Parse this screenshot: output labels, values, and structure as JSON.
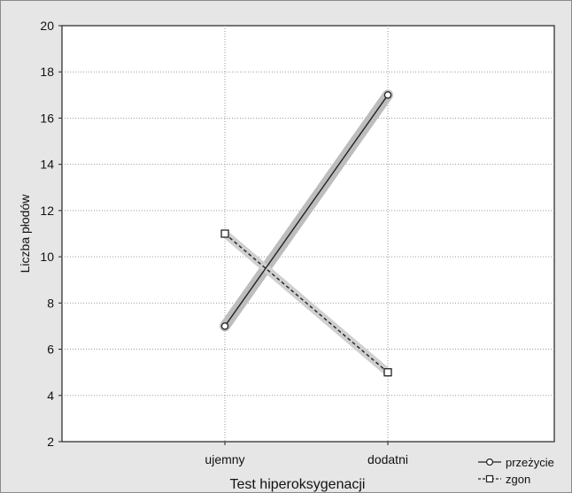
{
  "chart_data": {
    "type": "line",
    "title": "",
    "xlabel": "Test hiperoksygenacji",
    "ylabel": "Liczba płodów",
    "categories": [
      "ujemny",
      "dodatni"
    ],
    "ylim": [
      2,
      20
    ],
    "yticks": [
      2,
      4,
      6,
      8,
      10,
      12,
      14,
      16,
      18,
      20
    ],
    "grid": true,
    "legend_position": "bottom-right",
    "series": [
      {
        "name": "przeżycie",
        "values": [
          7,
          17
        ],
        "marker": "circle",
        "line_style": "solid",
        "color": "#222222",
        "band_color": "#bdbdbd"
      },
      {
        "name": "zgon",
        "values": [
          11,
          5
        ],
        "marker": "square",
        "line_style": "dashed",
        "color": "#222222",
        "band_color": "#cfcfcf"
      }
    ]
  }
}
